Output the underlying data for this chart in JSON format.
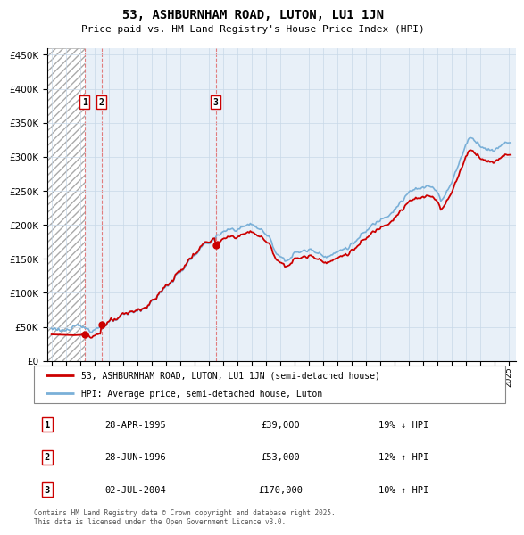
{
  "title": "53, ASHBURNHAM ROAD, LUTON, LU1 1JN",
  "subtitle": "Price paid vs. HM Land Registry's House Price Index (HPI)",
  "legend_entry1": "53, ASHBURNHAM ROAD, LUTON, LU1 1JN (semi-detached house)",
  "legend_entry2": "HPI: Average price, semi-detached house, Luton",
  "footnote1": "Contains HM Land Registry data © Crown copyright and database right 2025.",
  "footnote2": "This data is licensed under the Open Government Licence v3.0.",
  "transactions": [
    {
      "num": 1,
      "date": "28-APR-1995",
      "price": 39000,
      "year": 1995.32,
      "hpi_note": "19% ↓ HPI"
    },
    {
      "num": 2,
      "date": "28-JUN-1996",
      "price": 53000,
      "year": 1996.49,
      "hpi_note": "12% ↑ HPI"
    },
    {
      "num": 3,
      "date": "02-JUL-2004",
      "price": 170000,
      "year": 2004.5,
      "hpi_note": "10% ↑ HPI"
    }
  ],
  "price_color": "#cc0000",
  "hpi_line_color": "#7ab0d8",
  "vline_color": "#e06060",
  "background_color": "#e8f0f8",
  "ylim": [
    0,
    460000
  ],
  "yticks": [
    0,
    50000,
    100000,
    150000,
    200000,
    250000,
    300000,
    350000,
    400000,
    450000
  ],
  "xlim_start": 1992.7,
  "xlim_end": 2025.5,
  "xtick_years": [
    1993,
    1994,
    1995,
    1996,
    1997,
    1998,
    1999,
    2000,
    2001,
    2002,
    2003,
    2004,
    2005,
    2006,
    2007,
    2008,
    2009,
    2010,
    2011,
    2012,
    2013,
    2014,
    2015,
    2016,
    2017,
    2018,
    2019,
    2020,
    2021,
    2022,
    2023,
    2024,
    2025
  ]
}
